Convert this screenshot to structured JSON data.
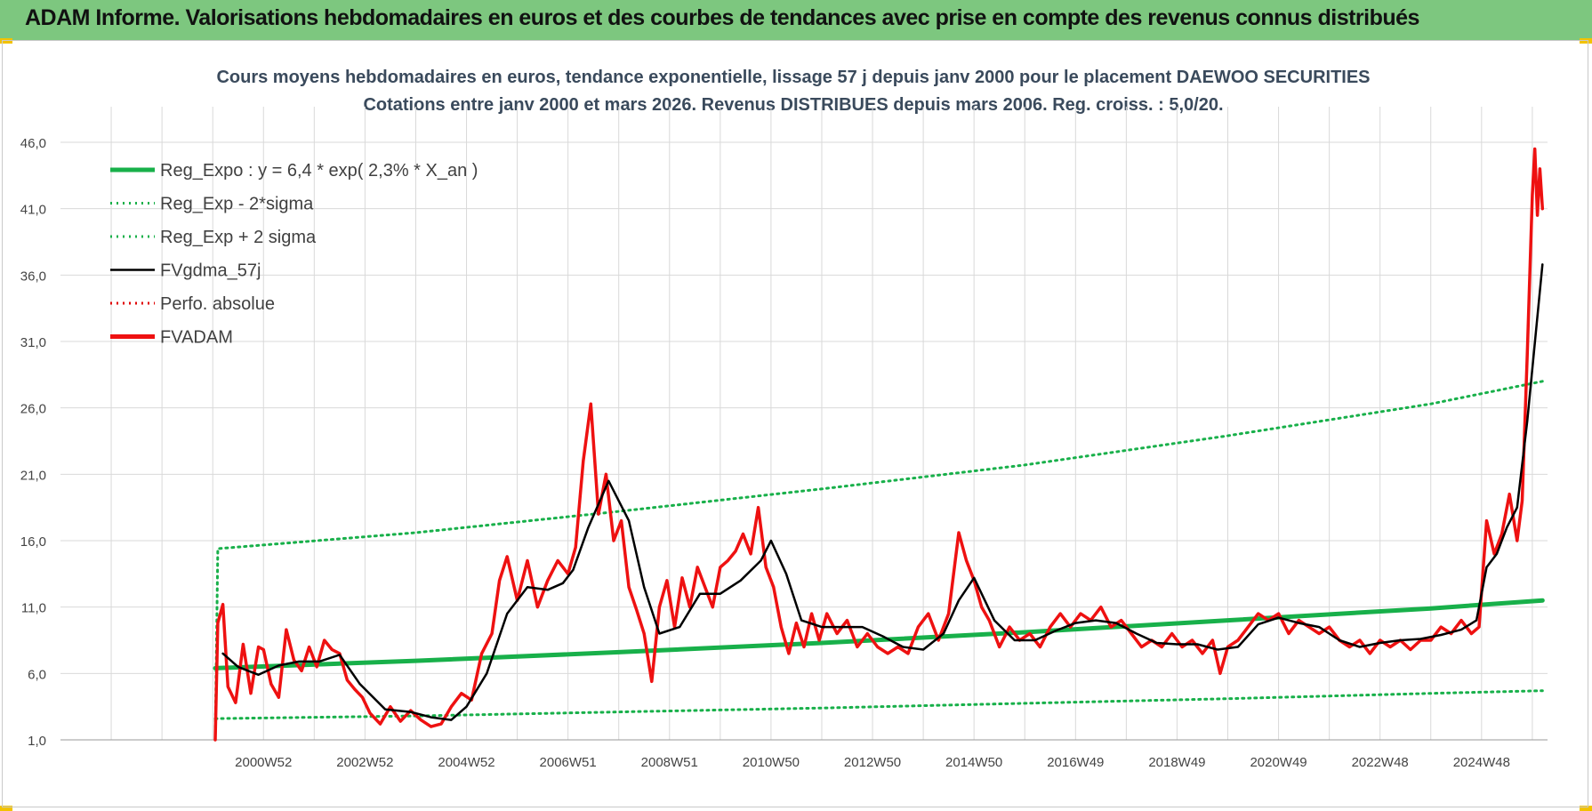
{
  "page": {
    "banner_title": "ADAM Informe. Valorisations hebdomadaires en euros et des courbes de tendances avec prise en compte des revenus connus distribués"
  },
  "colors": {
    "banner": "#7dc77f",
    "trend": "#18b04a",
    "band": "#18b04a",
    "smooth": "#000000",
    "perfo": "#e00000",
    "price": "#ee1111",
    "grid": "#d9d9d9"
  },
  "chart_data": {
    "type": "line",
    "title": "Cours moyens hebdomadaires en euros, tendance exponentielle, lissage 57 j depuis janv 2000 pour le placement DAEWOO SECURITIES",
    "subtitle": "Cotations entre janv 2000 et mars 2026. Revenus DISTRIBUES depuis mars 2006. Reg. croiss. : 5,0/20.",
    "xlabel": "",
    "ylabel": "",
    "ylim": [
      1,
      46
    ],
    "xlim": [
      1997.0,
      2026.3
    ],
    "y_ticks": [
      "1,0",
      "6,0",
      "11,0",
      "16,0",
      "21,0",
      "26,0",
      "31,0",
      "36,0",
      "41,0",
      "46,0"
    ],
    "y_tick_values": [
      1,
      6,
      11,
      16,
      21,
      26,
      31,
      36,
      41,
      46
    ],
    "x_ticks": [
      "2000W52",
      "2002W52",
      "2004W52",
      "2006W51",
      "2008W51",
      "2010W50",
      "2012W50",
      "2014W50",
      "2016W49",
      "2018W49",
      "2020W49",
      "2022W48",
      "2024W48"
    ],
    "x_tick_positions": [
      2001.0,
      2003.0,
      2005.0,
      2007.0,
      2009.0,
      2011.0,
      2013.0,
      2015.0,
      2017.0,
      2019.0,
      2021.0,
      2023.0,
      2025.0
    ],
    "grid": true,
    "legend_position": "top-left",
    "series": [
      {
        "name": "Reg_Expo : y = 6,4 * exp( 2,3% *  X_an )",
        "style": "solid-thick",
        "color": "#18b04a",
        "x": [
          2000.05,
          2004,
          2008,
          2012,
          2016,
          2020,
          2024,
          2026.2
        ],
        "y": [
          6.4,
          6.95,
          7.6,
          8.3,
          9.1,
          10.0,
          10.9,
          11.5
        ]
      },
      {
        "name": "Reg_Exp - 2*sigma",
        "style": "dotted",
        "color": "#18b04a",
        "x": [
          2000.05,
          2004,
          2008,
          2012,
          2016,
          2020,
          2024,
          2026.2
        ],
        "y": [
          2.6,
          2.8,
          3.1,
          3.4,
          3.75,
          4.1,
          4.5,
          4.7
        ]
      },
      {
        "name": "Reg_Exp + 2 sigma",
        "style": "dotted",
        "color": "#18b04a",
        "x": [
          2000.05,
          2000.1,
          2004,
          2008,
          2012,
          2016,
          2020,
          2024,
          2026.2
        ],
        "y": [
          1.0,
          15.4,
          16.6,
          18.2,
          19.9,
          21.7,
          23.9,
          26.3,
          28.0
        ]
      },
      {
        "name": "FVgdma_57j",
        "style": "solid",
        "color": "#000000",
        "x": [
          2000.2,
          2000.5,
          2000.9,
          2001.3,
          2001.7,
          2002.1,
          2002.5,
          2002.9,
          2003.4,
          2003.9,
          2004.3,
          2004.7,
          2005.0,
          2005.4,
          2005.8,
          2006.2,
          2006.6,
          2006.9,
          2007.1,
          2007.4,
          2007.8,
          2008.2,
          2008.5,
          2008.8,
          2009.2,
          2009.6,
          2010.0,
          2010.4,
          2010.8,
          2011.0,
          2011.3,
          2011.6,
          2012.0,
          2012.4,
          2012.8,
          2013.2,
          2013.6,
          2014.0,
          2014.4,
          2014.7,
          2015.0,
          2015.4,
          2015.8,
          2016.2,
          2016.6,
          2017.0,
          2017.4,
          2017.8,
          2018.2,
          2018.6,
          2019.0,
          2019.4,
          2019.8,
          2020.2,
          2020.6,
          2021.0,
          2021.4,
          2021.8,
          2022.2,
          2022.6,
          2023.0,
          2023.4,
          2023.8,
          2024.2,
          2024.6,
          2024.9,
          2025.1,
          2025.3,
          2025.5,
          2025.7,
          2025.9,
          2026.2
        ],
        "y": [
          7.5,
          6.5,
          5.9,
          6.6,
          6.9,
          6.9,
          7.4,
          5.2,
          3.3,
          3.1,
          2.7,
          2.5,
          3.5,
          6.0,
          10.5,
          12.5,
          12.3,
          12.8,
          13.8,
          17.0,
          20.5,
          17.5,
          12.5,
          9.0,
          9.5,
          12.0,
          12.0,
          13.0,
          14.5,
          16.0,
          13.5,
          10.0,
          9.5,
          9.5,
          9.5,
          8.8,
          8.0,
          7.8,
          9.0,
          11.5,
          13.2,
          10.0,
          8.5,
          8.5,
          9.2,
          9.8,
          10.0,
          9.8,
          9.0,
          8.3,
          8.2,
          8.2,
          7.8,
          8.0,
          9.7,
          10.2,
          9.8,
          9.5,
          8.5,
          8.0,
          8.3,
          8.5,
          8.6,
          8.9,
          9.3,
          10.0,
          14.0,
          15.0,
          17.0,
          18.5,
          25.0,
          36.8
        ]
      },
      {
        "name": "Perfo. absolue",
        "style": "dotted",
        "color": "#e00000",
        "x": [],
        "y": []
      },
      {
        "name": "FVADAM",
        "style": "solid-thick",
        "color": "#ee1111",
        "x": [
          2000.05,
          2000.1,
          2000.2,
          2000.3,
          2000.45,
          2000.6,
          2000.75,
          2000.9,
          2001.0,
          2001.15,
          2001.3,
          2001.45,
          2001.6,
          2001.75,
          2001.9,
          2002.05,
          2002.2,
          2002.35,
          2002.5,
          2002.65,
          2002.8,
          2002.95,
          2003.1,
          2003.3,
          2003.5,
          2003.7,
          2003.9,
          2004.1,
          2004.3,
          2004.5,
          2004.7,
          2004.9,
          2005.1,
          2005.3,
          2005.5,
          2005.65,
          2005.8,
          2006.0,
          2006.2,
          2006.4,
          2006.6,
          2006.8,
          2007.0,
          2007.15,
          2007.3,
          2007.45,
          2007.6,
          2007.75,
          2007.9,
          2008.05,
          2008.2,
          2008.35,
          2008.5,
          2008.65,
          2008.8,
          2008.95,
          2009.1,
          2009.25,
          2009.4,
          2009.55,
          2009.7,
          2009.85,
          2010.0,
          2010.15,
          2010.3,
          2010.45,
          2010.6,
          2010.75,
          2010.9,
          2011.05,
          2011.2,
          2011.35,
          2011.5,
          2011.65,
          2011.8,
          2011.95,
          2012.1,
          2012.3,
          2012.5,
          2012.7,
          2012.9,
          2013.1,
          2013.3,
          2013.5,
          2013.7,
          2013.9,
          2014.1,
          2014.3,
          2014.5,
          2014.7,
          2014.85,
          2015.0,
          2015.15,
          2015.3,
          2015.5,
          2015.7,
          2015.9,
          2016.1,
          2016.3,
          2016.5,
          2016.7,
          2016.9,
          2017.1,
          2017.3,
          2017.5,
          2017.7,
          2017.9,
          2018.1,
          2018.3,
          2018.5,
          2018.7,
          2018.9,
          2019.1,
          2019.3,
          2019.5,
          2019.7,
          2019.85,
          2020.0,
          2020.2,
          2020.4,
          2020.6,
          2020.8,
          2021.0,
          2021.2,
          2021.4,
          2021.6,
          2021.8,
          2022.0,
          2022.2,
          2022.4,
          2022.6,
          2022.8,
          2023.0,
          2023.2,
          2023.4,
          2023.6,
          2023.8,
          2024.0,
          2024.2,
          2024.4,
          2024.6,
          2024.8,
          2024.95,
          2025.1,
          2025.25,
          2025.4,
          2025.55,
          2025.7,
          2025.8,
          2025.9,
          2026.0,
          2026.05,
          2026.1,
          2026.15,
          2026.2
        ],
        "y": [
          1.0,
          9.8,
          11.2,
          5.0,
          3.8,
          8.2,
          4.5,
          8.0,
          7.8,
          5.2,
          4.2,
          9.3,
          7.0,
          6.2,
          8.0,
          6.5,
          8.5,
          7.8,
          7.5,
          5.5,
          4.8,
          4.2,
          3.0,
          2.2,
          3.5,
          2.4,
          3.2,
          2.5,
          2.0,
          2.2,
          3.5,
          4.5,
          4.0,
          7.5,
          9.0,
          13.0,
          14.8,
          11.5,
          14.5,
          11.0,
          13.0,
          14.5,
          13.5,
          15.5,
          22.0,
          26.3,
          18.0,
          21.0,
          16.0,
          17.5,
          12.5,
          10.8,
          9.0,
          5.4,
          11.0,
          13.0,
          9.5,
          13.2,
          11.0,
          14.0,
          12.5,
          11.0,
          14.0,
          14.5,
          15.2,
          16.5,
          15.0,
          18.5,
          14.0,
          12.5,
          9.5,
          7.5,
          9.8,
          8.0,
          10.5,
          8.5,
          10.5,
          9.0,
          10.0,
          8.0,
          9.0,
          8.0,
          7.5,
          8.0,
          7.5,
          9.5,
          10.5,
          8.5,
          10.5,
          16.6,
          14.5,
          13.0,
          11.0,
          10.0,
          8.0,
          9.5,
          8.5,
          9.0,
          8.0,
          9.5,
          10.5,
          9.5,
          10.5,
          10.0,
          11.0,
          9.5,
          10.0,
          9.0,
          8.0,
          8.5,
          8.0,
          9.0,
          8.0,
          8.5,
          7.5,
          8.5,
          6.0,
          8.0,
          8.5,
          9.5,
          10.5,
          10.0,
          10.5,
          9.0,
          10.0,
          9.5,
          9.0,
          9.5,
          8.5,
          8.0,
          8.5,
          7.5,
          8.5,
          8.0,
          8.5,
          7.8,
          8.5,
          8.5,
          9.5,
          9.0,
          10.0,
          9.0,
          9.5,
          17.5,
          15.0,
          16.5,
          19.5,
          16.0,
          19.0,
          30.0,
          42.0,
          45.5,
          40.5,
          44.0,
          41.0
        ]
      }
    ]
  }
}
